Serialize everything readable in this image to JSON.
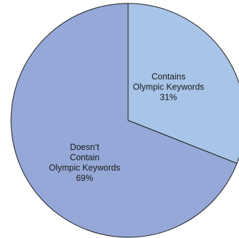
{
  "chart_data": {
    "type": "pie",
    "slices": [
      {
        "label_lines": [
          "Contains",
          "Olympic Keywords"
        ],
        "value": 31,
        "value_label": "31%",
        "color": "#a8c4e8"
      },
      {
        "label_lines": [
          "Doesn’t",
          "Contain",
          "Olympic Keywords"
        ],
        "value": 69,
        "value_label": "69%",
        "color": "#95a8d8"
      }
    ],
    "start_direction": "12 o'clock",
    "direction": "clockwise",
    "outline_color": "#1a1a1a"
  }
}
